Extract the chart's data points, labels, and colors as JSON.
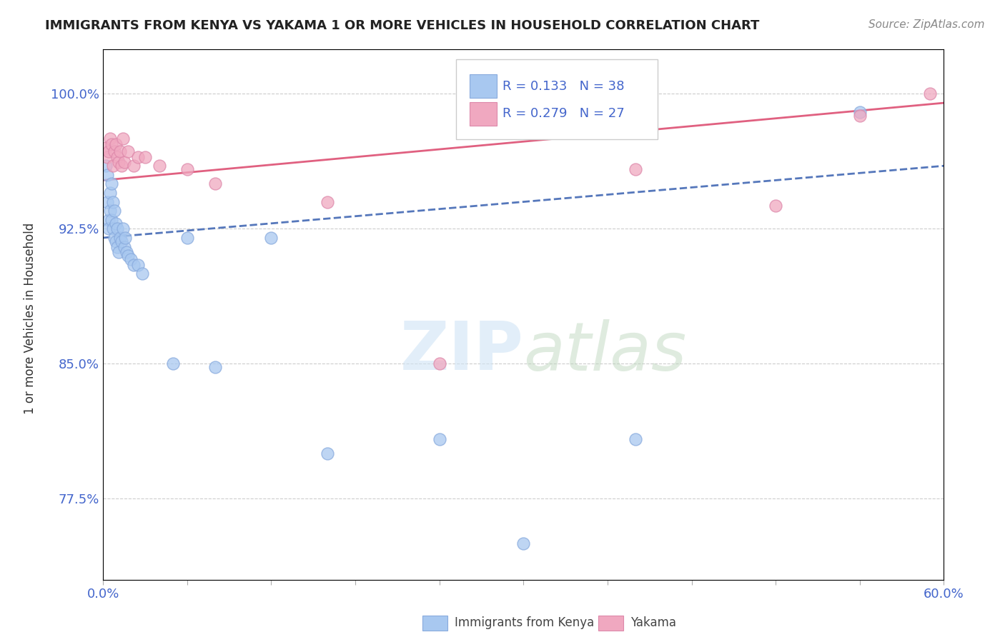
{
  "title": "IMMIGRANTS FROM KENYA VS YAKAMA 1 OR MORE VEHICLES IN HOUSEHOLD CORRELATION CHART",
  "source": "Source: ZipAtlas.com",
  "legend_kenya": "Immigrants from Kenya",
  "legend_yakama": "Yakama",
  "legend_r_kenya": "R = 0.133",
  "legend_n_kenya": "N = 38",
  "legend_r_yakama": "R = 0.279",
  "legend_n_yakama": "N = 27",
  "xmin": 0.0,
  "xmax": 0.6,
  "ymin": 0.73,
  "ymax": 1.025,
  "kenya_color": "#a8c8f0",
  "yakama_color": "#f0a8c0",
  "kenya_line_color": "#5577bb",
  "yakama_line_color": "#e06080",
  "kenya_x": [
    0.002,
    0.003,
    0.003,
    0.004,
    0.004,
    0.005,
    0.005,
    0.006,
    0.006,
    0.007,
    0.007,
    0.008,
    0.008,
    0.009,
    0.009,
    0.01,
    0.01,
    0.011,
    0.012,
    0.013,
    0.014,
    0.015,
    0.016,
    0.017,
    0.018,
    0.02,
    0.022,
    0.025,
    0.028,
    0.05,
    0.06,
    0.08,
    0.12,
    0.16,
    0.24,
    0.3,
    0.38,
    0.54
  ],
  "kenya_y": [
    0.96,
    0.955,
    0.94,
    0.93,
    0.925,
    0.945,
    0.935,
    0.95,
    0.93,
    0.94,
    0.925,
    0.935,
    0.92,
    0.928,
    0.918,
    0.925,
    0.915,
    0.912,
    0.92,
    0.918,
    0.925,
    0.915,
    0.92,
    0.912,
    0.91,
    0.908,
    0.905,
    0.905,
    0.9,
    0.85,
    0.92,
    0.848,
    0.92,
    0.8,
    0.808,
    0.75,
    0.808,
    0.99
  ],
  "yakama_x": [
    0.002,
    0.003,
    0.004,
    0.005,
    0.006,
    0.007,
    0.008,
    0.009,
    0.01,
    0.011,
    0.012,
    0.013,
    0.014,
    0.015,
    0.018,
    0.022,
    0.025,
    0.03,
    0.04,
    0.06,
    0.08,
    0.16,
    0.24,
    0.38,
    0.48,
    0.54,
    0.59
  ],
  "yakama_y": [
    0.97,
    0.965,
    0.968,
    0.975,
    0.972,
    0.96,
    0.968,
    0.972,
    0.965,
    0.962,
    0.968,
    0.96,
    0.975,
    0.962,
    0.968,
    0.96,
    0.965,
    0.965,
    0.96,
    0.958,
    0.95,
    0.94,
    0.85,
    0.958,
    0.938,
    0.988,
    1.0
  ],
  "watermark_zip": "ZIP",
  "watermark_atlas": "atlas",
  "background_color": "#ffffff"
}
